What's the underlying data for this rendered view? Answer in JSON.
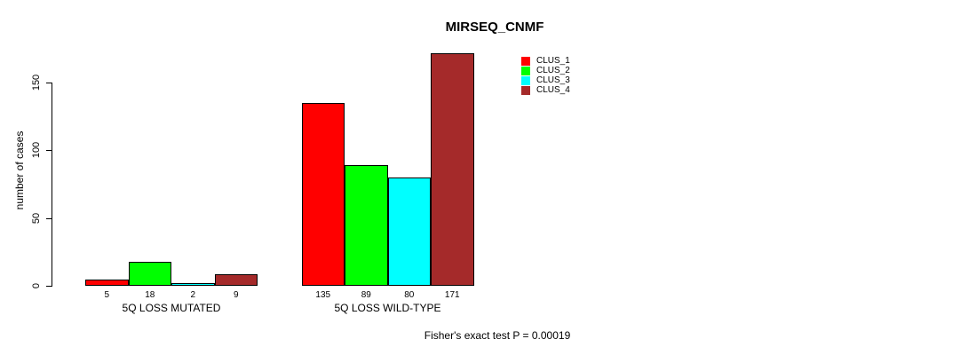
{
  "chart_data": {
    "type": "bar",
    "title": "MIRSEQ_CNMF",
    "ylabel": "number of cases",
    "xlabel": "",
    "categories": [
      "5Q LOSS MUTATED",
      "5Q LOSS WILD-TYPE"
    ],
    "series": [
      {
        "name": "CLUS_1",
        "color": "#FF0000",
        "values": [
          5,
          135
        ]
      },
      {
        "name": "CLUS_2",
        "color": "#00FF00",
        "values": [
          18,
          89
        ]
      },
      {
        "name": "CLUS_3",
        "color": "#00FFFF",
        "values": [
          2,
          80
        ]
      },
      {
        "name": "CLUS_4",
        "color": "#A52A2A",
        "values": [
          9,
          171
        ]
      }
    ],
    "yticks": [
      0,
      50,
      100,
      150
    ],
    "ylim": [
      0,
      175
    ],
    "grid": false,
    "bar_value_labels": true,
    "legend_position": "top-right",
    "annotation": "Fisher's exact test P = 0.00019"
  }
}
